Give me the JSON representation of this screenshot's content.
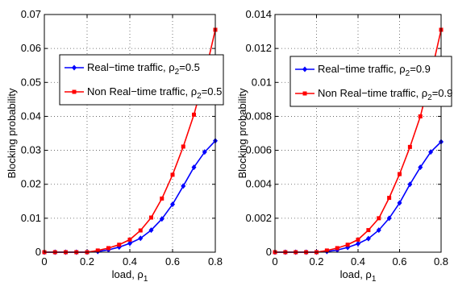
{
  "chart_data": [
    {
      "type": "line",
      "xlabel": "load, ρ",
      "xlabel_sub": "1",
      "ylabel": "Blocking probability",
      "xlim": [
        0,
        0.8
      ],
      "ylim": [
        0,
        0.07
      ],
      "xticks": [
        "0",
        "0.2",
        "0.4",
        "0.6",
        "0.8"
      ],
      "yticks": [
        "0",
        "0.01",
        "0.02",
        "0.03",
        "0.04",
        "0.05",
        "0.06",
        "0.07"
      ],
      "grid": true,
      "legend": "upper-left",
      "x": [
        0.0,
        0.05,
        0.1,
        0.15,
        0.2,
        0.25,
        0.3,
        0.35,
        0.4,
        0.45,
        0.5,
        0.55,
        0.6,
        0.65,
        0.7,
        0.75,
        0.8
      ],
      "series": [
        {
          "name": "Real−time traffic, ρ",
          "name_sub": "2",
          "name_tail": "=0.5",
          "color": "#0000ff",
          "marker": "diamond",
          "values": [
            0.0,
            0.0,
            0.0,
            0.0,
            0.0,
            0.0002,
            0.0007,
            0.0015,
            0.0026,
            0.0041,
            0.0065,
            0.0098,
            0.0141,
            0.0195,
            0.025,
            0.0295,
            0.0328
          ]
        },
        {
          "name": "Non Real−time traffic, ρ",
          "name_sub": "2",
          "name_tail": "=0.5",
          "color": "#ff0000",
          "marker": "square",
          "values": [
            0.0,
            0.0,
            0.0,
            0.0,
            0.0,
            0.0005,
            0.0012,
            0.0022,
            0.0037,
            0.0064,
            0.0102,
            0.0158,
            0.0228,
            0.0311,
            0.0405,
            0.052,
            0.0655
          ]
        }
      ]
    },
    {
      "type": "line",
      "xlabel": "load, ρ",
      "xlabel_sub": "1",
      "ylabel": "Blocking probability",
      "xlim": [
        0,
        0.8
      ],
      "ylim": [
        0,
        0.014
      ],
      "xticks": [
        "0",
        "0.2",
        "0.4",
        "0.6",
        "0.8"
      ],
      "yticks": [
        "0",
        "0.002",
        "0.004",
        "0.006",
        "0.008",
        "0.01",
        "0.012",
        "0.014"
      ],
      "grid": true,
      "legend": "upper-left",
      "x": [
        0.0,
        0.05,
        0.1,
        0.15,
        0.2,
        0.25,
        0.3,
        0.35,
        0.4,
        0.45,
        0.5,
        0.55,
        0.6,
        0.65,
        0.7,
        0.75,
        0.8
      ],
      "series": [
        {
          "name": "Real−time traffic, ρ",
          "name_sub": "2",
          "name_tail": "=0.9",
          "color": "#0000ff",
          "marker": "diamond",
          "values": [
            0.0,
            0.0,
            0.0,
            0.0,
            0.0,
            4e-05,
            0.00013,
            0.00028,
            0.0005,
            0.0008,
            0.0013,
            0.002,
            0.0029,
            0.004,
            0.005,
            0.0059,
            0.0065
          ]
        },
        {
          "name": "Non Real−time traffic, ρ",
          "name_sub": "2",
          "name_tail": "=0.9",
          "color": "#ff0000",
          "marker": "square",
          "values": [
            0.0,
            0.0,
            0.0,
            0.0,
            0.0,
            0.0001,
            0.00024,
            0.00044,
            0.00074,
            0.0013,
            0.002,
            0.0032,
            0.0046,
            0.0062,
            0.008,
            0.0104,
            0.0131
          ]
        }
      ]
    }
  ]
}
